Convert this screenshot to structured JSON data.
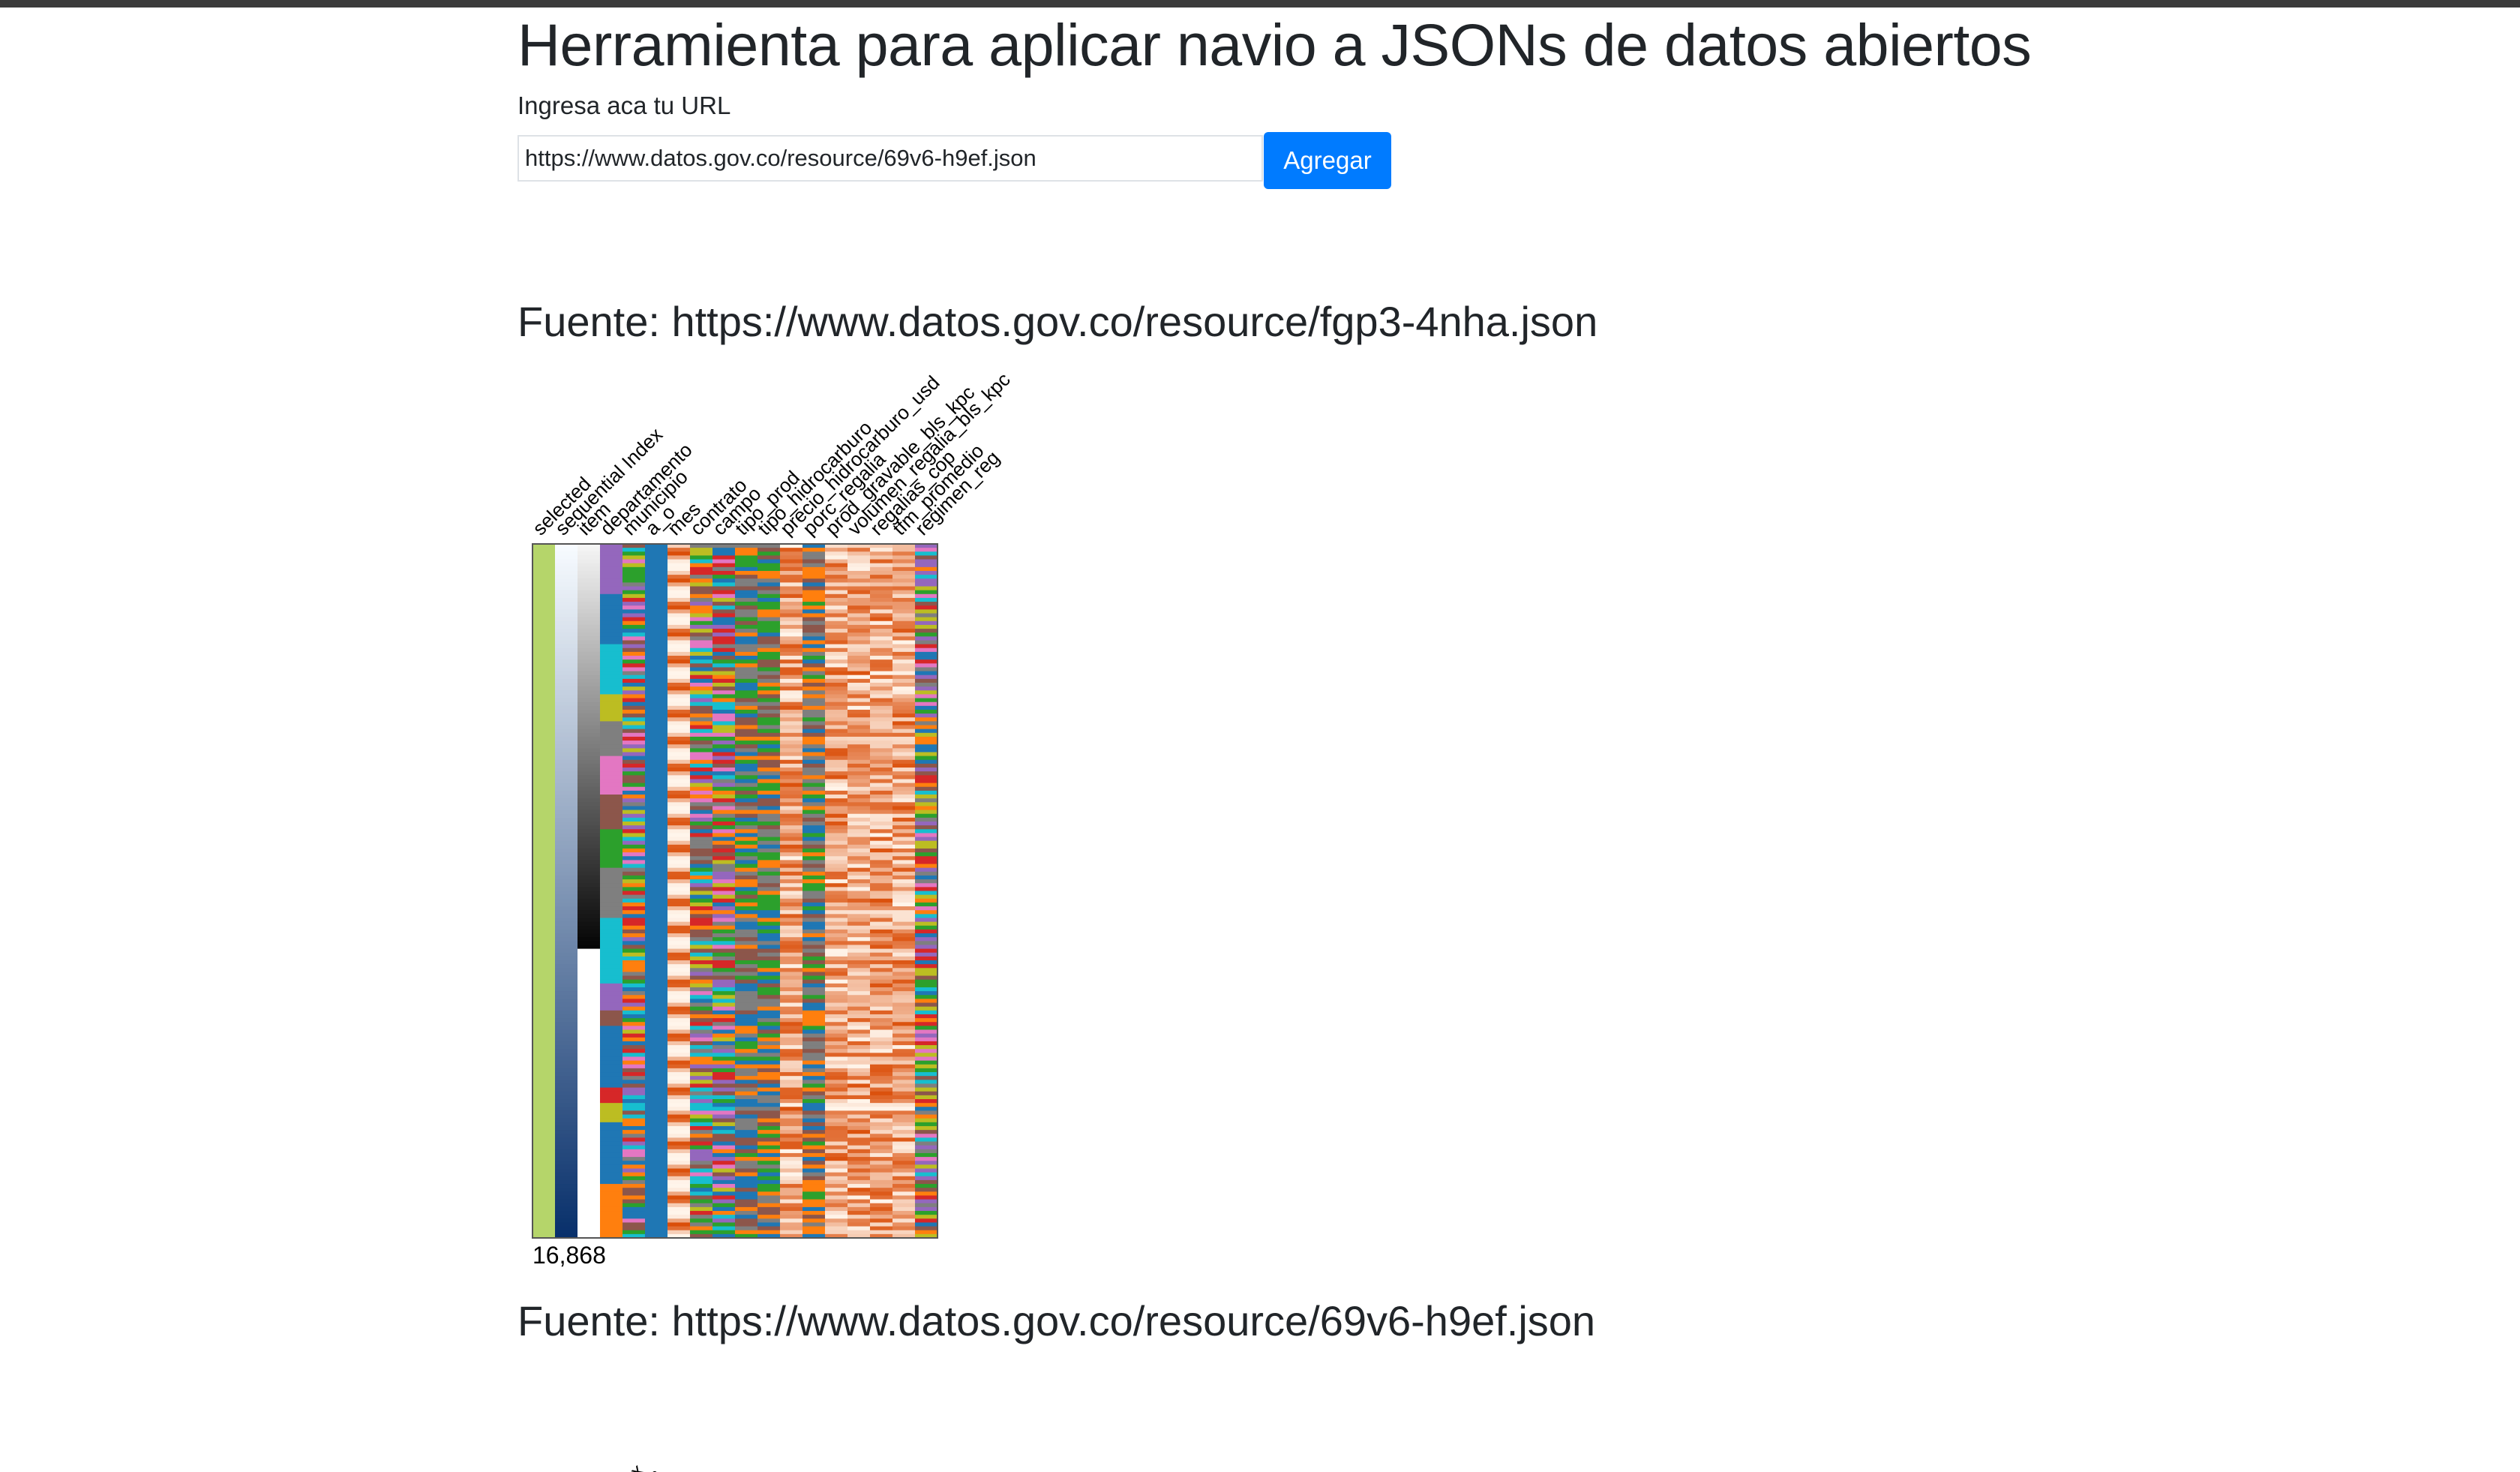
{
  "header": {
    "title": "Herramienta para aplicar navio a JSONs de datos abiertos",
    "input_label": "Ingresa aca tu URL",
    "input_value": "https://www.datos.gov.co/resource/69v6-h9ef.json",
    "add_button": "Agregar",
    "accent_color": "#007bff"
  },
  "sources": [
    {
      "heading": "Fuente: https://www.datos.gov.co/resource/fgp3-4nha.json",
      "row_count": "16,868",
      "attributes": [
        {
          "name": "selected",
          "kind": "selected"
        },
        {
          "name": "sequential Index",
          "kind": "sequential"
        },
        {
          "name": "item",
          "kind": "gray"
        },
        {
          "name": "departamento",
          "kind": "categorical-blocks"
        },
        {
          "name": "municipio",
          "kind": "categorical-many"
        },
        {
          "name": "a_o",
          "kind": "solid-blue"
        },
        {
          "name": "mes",
          "kind": "orange-waves"
        },
        {
          "name": "contrato",
          "kind": "categorical-many"
        },
        {
          "name": "campo",
          "kind": "categorical-many"
        },
        {
          "name": "tipo_prod",
          "kind": "categorical-few"
        },
        {
          "name": "tipo_hidrocarburo",
          "kind": "categorical-few"
        },
        {
          "name": "precio_hidrocarburo_usd",
          "kind": "orange-heat"
        },
        {
          "name": "porc_regalia",
          "kind": "categorical-few"
        },
        {
          "name": "prod_gravable_bls_kpc",
          "kind": "orange-heat"
        },
        {
          "name": "volumen_regalia_bls_kpc",
          "kind": "orange-heat"
        },
        {
          "name": "regalias_cop",
          "kind": "orange-heat"
        },
        {
          "name": "tfm_promedio",
          "kind": "orange-heat"
        },
        {
          "name": "regimen_reg",
          "kind": "categorical-many"
        }
      ]
    },
    {
      "heading": "Fuente: https://www.datos.gov.co/resource/69v6-h9ef.json",
      "partial_labels": [
        "Index",
        "ocacion",
        "actado",
        "cto"
      ]
    }
  ],
  "colors": {
    "selected": "#b5d56a",
    "heat_light": "#fff5eb",
    "heat_dark": "#d94801",
    "categorical": [
      "#1f77b4",
      "#ff7f0e",
      "#2ca02c",
      "#d62728",
      "#9467bd",
      "#8c564b",
      "#e377c2",
      "#7f7f7f",
      "#bcbd22",
      "#17becf"
    ]
  }
}
